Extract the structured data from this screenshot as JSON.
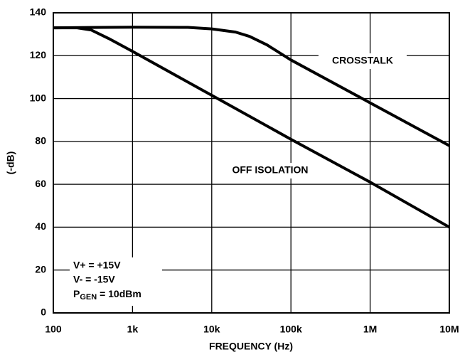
{
  "chart_data": {
    "type": "line",
    "xlabel": "FREQUENCY (Hz)",
    "ylabel": "(-dB)",
    "xscale": "log",
    "grid": true,
    "xlim": [
      100,
      10000000
    ],
    "ylim": [
      0,
      140
    ],
    "xticks": [
      100,
      {
        "value": 1000,
        "label": "1k"
      },
      {
        "value": 10000,
        "label": "10k"
      },
      {
        "value": 100000,
        "label": "100k"
      },
      {
        "value": 1000000,
        "label": "1M"
      },
      {
        "value": 10000000,
        "label": "10M"
      }
    ],
    "yticks": [
      0,
      20,
      40,
      60,
      80,
      100,
      120,
      140
    ],
    "series": [
      {
        "name": "CROSSTALK",
        "color": "#000000",
        "x": [
          100,
          1000,
          5000,
          10000,
          20000,
          30000,
          50000,
          100000,
          1000000,
          10000000
        ],
        "values": [
          133,
          133.3,
          133.2,
          132.5,
          131,
          129,
          125,
          118,
          98,
          78
        ]
      },
      {
        "name": "OFF ISOLATION",
        "color": "#000000",
        "x": [
          100,
          200,
          300,
          500,
          1000,
          10000,
          100000,
          1000000,
          10000000
        ],
        "values": [
          133,
          133,
          132,
          128,
          122,
          101.5,
          81,
          61,
          40
        ]
      }
    ],
    "conditions": [
      "V+ = +15V",
      "V- = -15V",
      [
        "P",
        "GEN",
        " = 10dBm"
      ]
    ]
  }
}
